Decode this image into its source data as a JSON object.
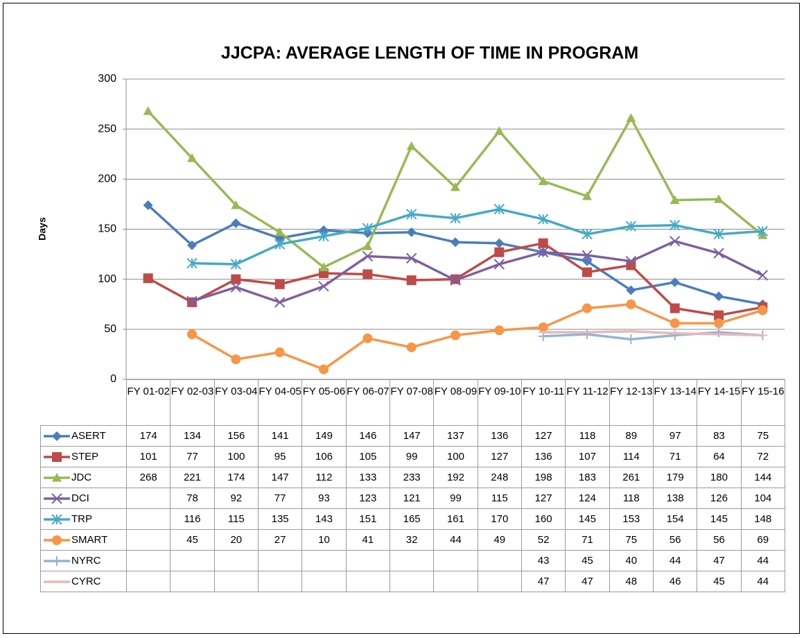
{
  "chart_data": {
    "type": "line",
    "title": "JJCPA: AVERAGE LENGTH OF TIME IN PROGRAM",
    "y_label": "Days",
    "categories": [
      "FY 01-02",
      "FY 02-03",
      "FY 03-04",
      "FY 04-05",
      "FY 05-06",
      "FY 06-07",
      "FY 07-08",
      "FY 08-09",
      "FY 09-10",
      "FY 10-11",
      "FY 11-12",
      "FY 12-13",
      "FY 13-14",
      "FY 14-15",
      "FY 15-16"
    ],
    "ylim": [
      0,
      300
    ],
    "yticks": [
      0,
      50,
      100,
      150,
      200,
      250,
      300
    ],
    "grid": true,
    "series": [
      {
        "name": "ASERT",
        "color": "#4a7ebb",
        "marker": "diamond",
        "values": [
          174,
          134,
          156,
          141,
          149,
          146,
          147,
          137,
          136,
          127,
          118,
          89,
          97,
          83,
          75
        ]
      },
      {
        "name": "STEP",
        "color": "#be4b48",
        "marker": "square",
        "values": [
          101,
          77,
          100,
          95,
          106,
          105,
          99,
          100,
          127,
          136,
          107,
          114,
          71,
          64,
          72
        ]
      },
      {
        "name": "JDC",
        "color": "#98b954",
        "marker": "triangle",
        "values": [
          268,
          221,
          174,
          147,
          112,
          133,
          233,
          192,
          248,
          198,
          183,
          261,
          179,
          180,
          144
        ]
      },
      {
        "name": "DCI",
        "color": "#7d60a0",
        "marker": "x",
        "values": [
          null,
          78,
          92,
          77,
          93,
          123,
          121,
          99,
          115,
          127,
          124,
          118,
          138,
          126,
          104
        ]
      },
      {
        "name": "TRP",
        "color": "#46aac5",
        "marker": "star",
        "values": [
          null,
          116,
          115,
          135,
          143,
          151,
          165,
          161,
          170,
          160,
          145,
          153,
          154,
          145,
          148
        ]
      },
      {
        "name": "SMART",
        "color": "#f79646",
        "marker": "circle",
        "values": [
          null,
          45,
          20,
          27,
          10,
          41,
          32,
          44,
          49,
          52,
          71,
          75,
          56,
          56,
          69
        ]
      },
      {
        "name": "NYRC",
        "color": "#95b3d7",
        "marker": "plus",
        "values": [
          null,
          null,
          null,
          null,
          null,
          null,
          null,
          null,
          null,
          43,
          45,
          40,
          44,
          47,
          44
        ]
      },
      {
        "name": "CYRC",
        "color": "#e6b9b8",
        "marker": "dash",
        "values": [
          null,
          null,
          null,
          null,
          null,
          null,
          null,
          null,
          null,
          47,
          47,
          48,
          46,
          45,
          44
        ]
      }
    ]
  }
}
